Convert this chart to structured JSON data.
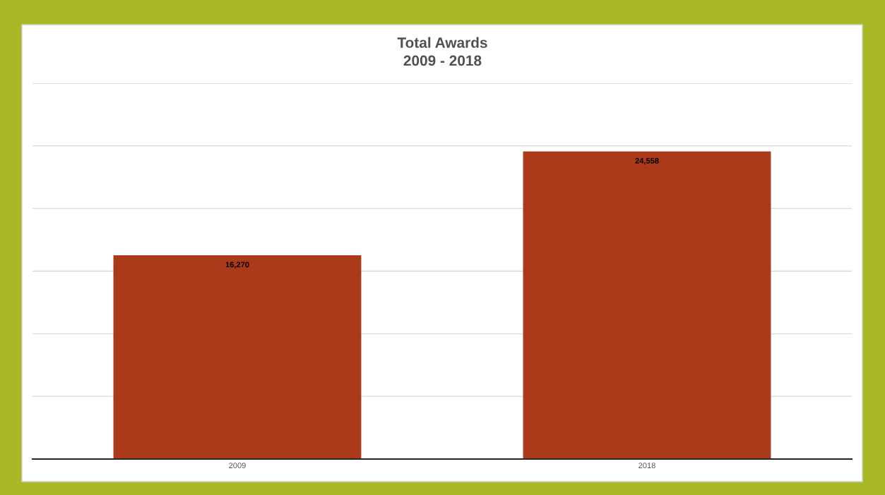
{
  "chart_data": {
    "type": "bar",
    "title": "Total Awards\n2009 - 2018",
    "categories": [
      "2009",
      "2018"
    ],
    "values": [
      16270,
      24558
    ],
    "value_labels": [
      "16,270",
      "24,558"
    ],
    "color": "#ab3a1a",
    "ylim": [
      0,
      30000
    ],
    "yticks": [
      {
        "value": 0,
        "label": null
      },
      {
        "value": 5000,
        "label": null
      },
      {
        "value": 10000,
        "label": null
      },
      {
        "value": 15000,
        "label": null
      },
      {
        "value": 20000,
        "label": null
      },
      {
        "value": 25000,
        "label": null
      },
      {
        "value": 30000,
        "label": null
      }
    ],
    "tick_labels": "x",
    "grid": "y",
    "legend": false
  }
}
